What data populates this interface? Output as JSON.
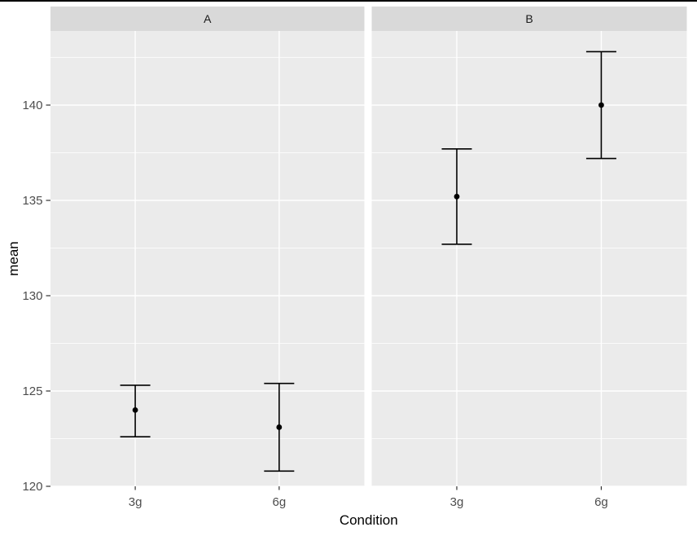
{
  "window": {
    "top_border_color": "#000000",
    "background": "#ffffff"
  },
  "chart_data": {
    "type": "scatter",
    "subtype": "point-with-errorbar",
    "title": "",
    "xlabel": "Condition",
    "ylabel": "mean",
    "categories": [
      "3g",
      "6g"
    ],
    "facets": [
      {
        "label": "A",
        "points": [
          {
            "category": "3g",
            "mean": 124.0,
            "lower": 122.6,
            "upper": 125.3
          },
          {
            "category": "6g",
            "mean": 123.1,
            "lower": 120.8,
            "upper": 125.4
          }
        ]
      },
      {
        "label": "B",
        "points": [
          {
            "category": "3g",
            "mean": 135.2,
            "lower": 132.7,
            "upper": 137.7
          },
          {
            "category": "6g",
            "mean": 140.0,
            "lower": 137.2,
            "upper": 142.8
          }
        ]
      }
    ],
    "y_ticks": [
      120,
      125,
      130,
      135,
      140
    ],
    "y_minor_gridlines": [
      122.5,
      127.5,
      132.5,
      137.5,
      142.5
    ],
    "ylim": [
      119.95,
      143.95
    ],
    "grid": true,
    "legend": "none",
    "style": {
      "panel_bg": "#EBEBEB",
      "strip_bg": "#D9D9D9",
      "grid_color": "#FFFFFF",
      "mark_color": "#000000",
      "tick_label_color": "#4D4D4D",
      "axis_title_color": "#000000",
      "strip_label_color": "#1A1A1A",
      "tick_mark_color": "#333333"
    }
  }
}
